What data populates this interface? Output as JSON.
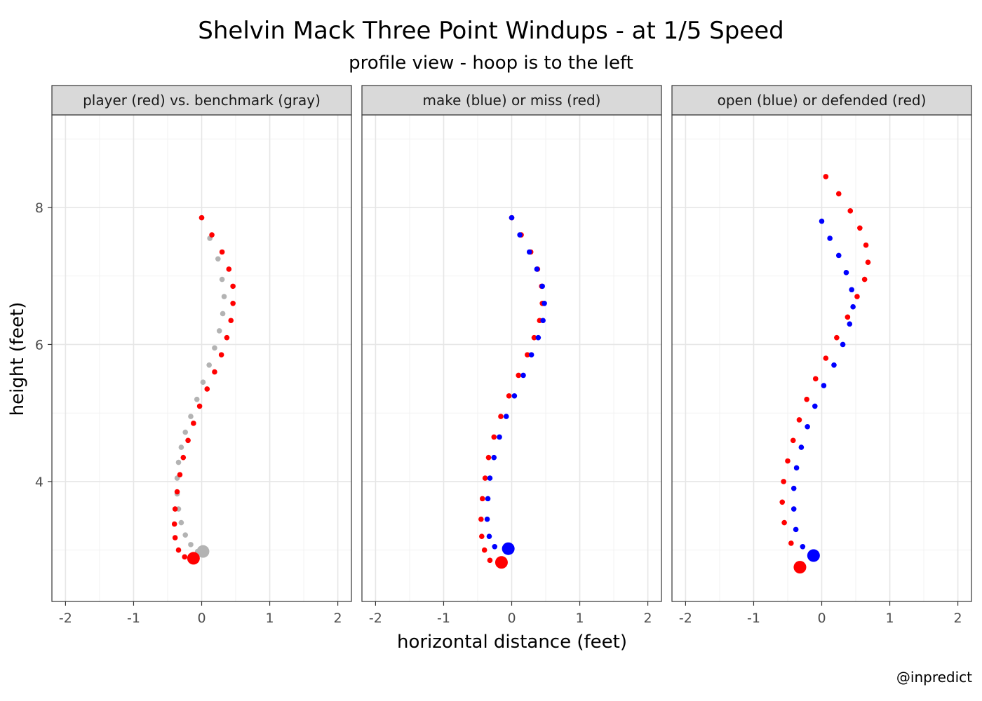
{
  "title": "Shelvin Mack Three Point Windups - at 1/5 Speed",
  "subtitle": "profile view - hoop is to the left",
  "credit": "@inpredict",
  "chart_data": {
    "type": "scatter",
    "xlabel": "horizontal distance (feet)",
    "ylabel": "height (feet)",
    "xlim": [
      -2.2,
      2.2
    ],
    "ylim": [
      2.25,
      9.35
    ],
    "x_ticks": [
      -2,
      -1,
      0,
      1,
      2
    ],
    "y_ticks": [
      4,
      6,
      8
    ],
    "grid": true,
    "colors": {
      "red": "#ff0000",
      "blue": "#0000ff",
      "gray": "#b3b3b3"
    },
    "panels": [
      {
        "strip": "player (red) vs. benchmark (gray)",
        "series": [
          {
            "color": "#b3b3b3",
            "name": "benchmark",
            "x": [
              0.0,
              0.12,
              0.24,
              0.3,
              0.33,
              0.31,
              0.26,
              0.19,
              0.11,
              0.02,
              -0.07,
              -0.16,
              -0.24,
              -0.3,
              -0.34,
              -0.36,
              -0.36,
              -0.34,
              -0.3,
              -0.24,
              -0.16,
              -0.06,
              0.02
            ],
            "y": [
              7.85,
              7.55,
              7.25,
              6.95,
              6.7,
              6.45,
              6.2,
              5.95,
              5.7,
              5.45,
              5.2,
              4.95,
              4.72,
              4.5,
              4.28,
              4.05,
              3.82,
              3.6,
              3.4,
              3.22,
              3.08,
              2.98,
              2.95
            ],
            "start": {
              "x": 0.02,
              "y": 2.98
            }
          },
          {
            "color": "#ff0000",
            "name": "player",
            "x": [
              0.0,
              0.15,
              0.3,
              0.4,
              0.46,
              0.46,
              0.43,
              0.37,
              0.29,
              0.19,
              0.08,
              -0.03,
              -0.12,
              -0.2,
              -0.27,
              -0.32,
              -0.36,
              -0.39,
              -0.4,
              -0.39,
              -0.34,
              -0.25,
              -0.12
            ],
            "y": [
              7.85,
              7.6,
              7.35,
              7.1,
              6.85,
              6.6,
              6.35,
              6.1,
              5.85,
              5.6,
              5.35,
              5.1,
              4.85,
              4.6,
              4.35,
              4.1,
              3.85,
              3.6,
              3.38,
              3.18,
              3.0,
              2.9,
              2.88
            ],
            "start": {
              "x": -0.12,
              "y": 2.88
            }
          }
        ]
      },
      {
        "strip": "make (blue) or miss (red)",
        "series": [
          {
            "color": "#ff0000",
            "name": "miss",
            "x": [
              0.0,
              0.14,
              0.28,
              0.38,
              0.44,
              0.45,
              0.41,
              0.33,
              0.23,
              0.1,
              -0.04,
              -0.16,
              -0.26,
              -0.34,
              -0.39,
              -0.43,
              -0.45,
              -0.44,
              -0.4,
              -0.32,
              -0.15
            ],
            "y": [
              7.85,
              7.6,
              7.35,
              7.1,
              6.85,
              6.6,
              6.35,
              6.1,
              5.85,
              5.55,
              5.25,
              4.95,
              4.65,
              4.35,
              4.05,
              3.75,
              3.45,
              3.2,
              3.0,
              2.85,
              2.82
            ],
            "start": {
              "x": -0.15,
              "y": 2.82
            }
          },
          {
            "color": "#0000ff",
            "name": "make",
            "x": [
              0.0,
              0.12,
              0.26,
              0.37,
              0.45,
              0.48,
              0.46,
              0.39,
              0.29,
              0.17,
              0.04,
              -0.08,
              -0.18,
              -0.26,
              -0.32,
              -0.35,
              -0.36,
              -0.33,
              -0.25,
              -0.05
            ],
            "y": [
              7.85,
              7.6,
              7.35,
              7.1,
              6.85,
              6.6,
              6.35,
              6.1,
              5.85,
              5.55,
              5.25,
              4.95,
              4.65,
              4.35,
              4.05,
              3.75,
              3.45,
              3.2,
              3.05,
              3.02
            ],
            "start": {
              "x": -0.05,
              "y": 3.02
            }
          }
        ]
      },
      {
        "strip": "open (blue) or defended (red)",
        "series": [
          {
            "color": "#ff0000",
            "name": "defended",
            "x": [
              0.06,
              0.25,
              0.42,
              0.56,
              0.65,
              0.68,
              0.63,
              0.52,
              0.38,
              0.22,
              0.06,
              -0.09,
              -0.22,
              -0.33,
              -0.42,
              -0.5,
              -0.56,
              -0.58,
              -0.55,
              -0.45,
              -0.32
            ],
            "y": [
              8.45,
              8.2,
              7.95,
              7.7,
              7.45,
              7.2,
              6.95,
              6.7,
              6.4,
              6.1,
              5.8,
              5.5,
              5.2,
              4.9,
              4.6,
              4.3,
              4.0,
              3.7,
              3.4,
              3.1,
              2.75
            ],
            "start": {
              "x": -0.32,
              "y": 2.75
            }
          },
          {
            "color": "#0000ff",
            "name": "open",
            "x": [
              0.0,
              0.12,
              0.25,
              0.36,
              0.44,
              0.46,
              0.41,
              0.31,
              0.18,
              0.03,
              -0.1,
              -0.21,
              -0.3,
              -0.37,
              -0.41,
              -0.41,
              -0.38,
              -0.28,
              -0.12
            ],
            "y": [
              7.8,
              7.55,
              7.3,
              7.05,
              6.8,
              6.55,
              6.3,
              6.0,
              5.7,
              5.4,
              5.1,
              4.8,
              4.5,
              4.2,
              3.9,
              3.6,
              3.3,
              3.05,
              2.92
            ],
            "start": {
              "x": -0.12,
              "y": 2.92
            }
          }
        ]
      }
    ]
  }
}
